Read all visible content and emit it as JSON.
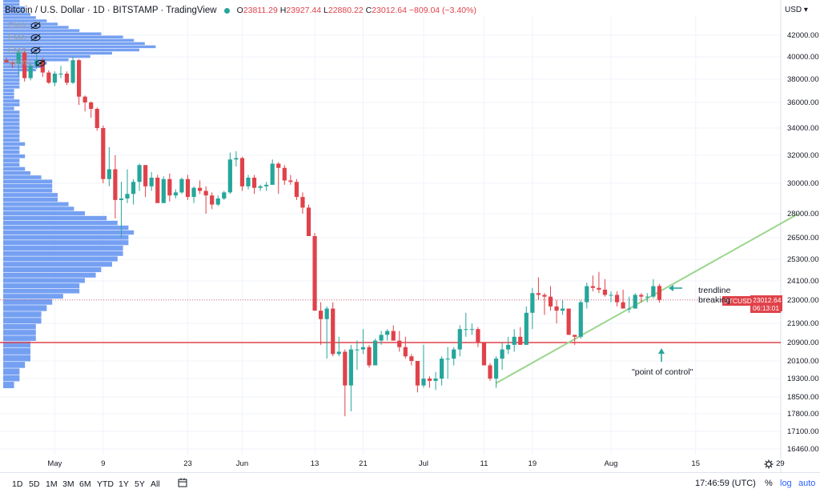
{
  "header": {
    "symbol": "Bitcoin / U.S. Dollar · 1D · BITSTAMP · TradingView",
    "open_label": "O",
    "open": "23811.29",
    "high_label": "H",
    "high": "23927.44",
    "low_label": "L",
    "low": "22880.22",
    "close_label": "C",
    "close": "23012.64",
    "change": "−809.04 (−3.40%)"
  },
  "indicators": [
    {
      "label": "EMA",
      "icon": "eye-slash-icon"
    },
    {
      "label": "EMA",
      "icon": "eye-slash-icon"
    },
    {
      "label": "EMA",
      "icon": "eye-slash-icon"
    },
    {
      "label": "VPVR",
      "icon": "eye-slash-icon"
    }
  ],
  "currency": "USD",
  "price_axis": [
    "42000.00",
    "40000.00",
    "38000.00",
    "36000.00",
    "34000.00",
    "32000.00",
    "30000.00",
    "28000.00",
    "26500.00",
    "25300.00",
    "24100.00",
    "23000.00",
    "21900.00",
    "20900.00",
    "20100.00",
    "19300.00",
    "18500.00",
    "17800.00",
    "17100.00",
    "16460.00"
  ],
  "time_axis": [
    "May",
    "9",
    "23",
    "Jun",
    "13",
    "21",
    "Jul",
    "11",
    "19",
    "Aug",
    "15",
    "29"
  ],
  "last_price": {
    "ticker": "BTCUSD",
    "price": "23012.64",
    "countdown": "06:13:01"
  },
  "annotations": {
    "trendline": [
      "trendline",
      "breaking"
    ],
    "poc": "\"point of control\""
  },
  "timeframes": [
    "1D",
    "5D",
    "1M",
    "3M",
    "6M",
    "YTD",
    "1Y",
    "5Y",
    "All"
  ],
  "footer": {
    "clock": "17:46:59 (UTC)",
    "percent": "%",
    "log": "log",
    "auto": "auto"
  },
  "colors": {
    "up": "#26a69a",
    "down": "#e0424a",
    "trendline": "#9bd68d",
    "poc": "#e0424a",
    "volume": "#5d8ff0",
    "accent": "#2962ff"
  },
  "chart_data": {
    "type": "candlestick",
    "x_range": [
      "2022-04-23",
      "2022-09-01"
    ],
    "ylim": [
      16460,
      42000
    ],
    "candles": [
      {
        "d": "Apr 23",
        "o": 39700,
        "h": 39900,
        "l": 39500,
        "c": 39500
      },
      {
        "d": "Apr 24",
        "o": 39500,
        "h": 39700,
        "l": 39000,
        "c": 39400
      },
      {
        "d": "Apr 25",
        "o": 39400,
        "h": 40600,
        "l": 38300,
        "c": 40400
      },
      {
        "d": "Apr 26",
        "o": 40400,
        "h": 40800,
        "l": 37800,
        "c": 38100
      },
      {
        "d": "Apr 27",
        "o": 38100,
        "h": 39400,
        "l": 37900,
        "c": 39200
      },
      {
        "d": "Apr 28",
        "o": 39200,
        "h": 40300,
        "l": 38900,
        "c": 39700
      },
      {
        "d": "Apr 29",
        "o": 39700,
        "h": 39900,
        "l": 38200,
        "c": 38600
      },
      {
        "d": "Apr 30",
        "o": 38600,
        "h": 38800,
        "l": 37600,
        "c": 37700
      },
      {
        "d": "May 1",
        "o": 37700,
        "h": 38700,
        "l": 37400,
        "c": 38500
      },
      {
        "d": "May 2",
        "o": 38500,
        "h": 39200,
        "l": 38100,
        "c": 38500
      },
      {
        "d": "May 3",
        "o": 38500,
        "h": 38700,
        "l": 37500,
        "c": 37700
      },
      {
        "d": "May 4",
        "o": 37700,
        "h": 40000,
        "l": 37600,
        "c": 39700
      },
      {
        "d": "May 5",
        "o": 39700,
        "h": 39800,
        "l": 35800,
        "c": 36500
      },
      {
        "d": "May 6",
        "o": 36500,
        "h": 36600,
        "l": 35300,
        "c": 36000
      },
      {
        "d": "May 7",
        "o": 36000,
        "h": 36100,
        "l": 34800,
        "c": 35500
      },
      {
        "d": "May 8",
        "o": 35500,
        "h": 35600,
        "l": 33800,
        "c": 34000
      },
      {
        "d": "May 9",
        "o": 34000,
        "h": 34200,
        "l": 30000,
        "c": 30300
      },
      {
        "d": "May 10",
        "o": 30300,
        "h": 32600,
        "l": 29800,
        "c": 31000
      },
      {
        "d": "May 11",
        "o": 31000,
        "h": 32000,
        "l": 27700,
        "c": 28900
      },
      {
        "d": "May 12",
        "o": 28900,
        "h": 30100,
        "l": 26500,
        "c": 29000
      },
      {
        "d": "May 13",
        "o": 29000,
        "h": 31000,
        "l": 28700,
        "c": 29300
      },
      {
        "d": "May 14",
        "o": 29300,
        "h": 30300,
        "l": 28600,
        "c": 30100
      },
      {
        "d": "May 15",
        "o": 30100,
        "h": 31400,
        "l": 29500,
        "c": 31300
      },
      {
        "d": "May 16",
        "o": 31300,
        "h": 31300,
        "l": 29100,
        "c": 29800
      },
      {
        "d": "May 17",
        "o": 29800,
        "h": 30800,
        "l": 29500,
        "c": 30400
      },
      {
        "d": "May 18",
        "o": 30400,
        "h": 30600,
        "l": 28700,
        "c": 28700
      },
      {
        "d": "May 19",
        "o": 28700,
        "h": 30500,
        "l": 28700,
        "c": 30300
      },
      {
        "d": "May 20",
        "o": 30300,
        "h": 30700,
        "l": 28800,
        "c": 29200
      },
      {
        "d": "May 21",
        "o": 29200,
        "h": 29600,
        "l": 29000,
        "c": 29400
      },
      {
        "d": "May 22",
        "o": 29400,
        "h": 30400,
        "l": 29300,
        "c": 30300
      },
      {
        "d": "May 23",
        "o": 30300,
        "h": 30600,
        "l": 28900,
        "c": 29100
      },
      {
        "d": "May 24",
        "o": 29100,
        "h": 29800,
        "l": 28700,
        "c": 29700
      },
      {
        "d": "May 25",
        "o": 29700,
        "h": 30200,
        "l": 29300,
        "c": 29500
      },
      {
        "d": "May 26",
        "o": 29500,
        "h": 29800,
        "l": 28000,
        "c": 29200
      },
      {
        "d": "May 27",
        "o": 29200,
        "h": 29400,
        "l": 28300,
        "c": 28600
      },
      {
        "d": "May 28",
        "o": 28600,
        "h": 29200,
        "l": 28500,
        "c": 29000
      },
      {
        "d": "May 29",
        "o": 29000,
        "h": 29500,
        "l": 28900,
        "c": 29400
      },
      {
        "d": "May 30",
        "o": 29400,
        "h": 32200,
        "l": 29300,
        "c": 31700
      },
      {
        "d": "May 31",
        "o": 31700,
        "h": 32300,
        "l": 31200,
        "c": 31800
      },
      {
        "d": "Jun 1",
        "o": 31800,
        "h": 31900,
        "l": 29500,
        "c": 29800
      },
      {
        "d": "Jun 2",
        "o": 29800,
        "h": 30600,
        "l": 29600,
        "c": 30400
      },
      {
        "d": "Jun 3",
        "o": 30400,
        "h": 30600,
        "l": 29300,
        "c": 29700
      },
      {
        "d": "Jun 4",
        "o": 29700,
        "h": 29900,
        "l": 29500,
        "c": 29800
      },
      {
        "d": "Jun 5",
        "o": 29800,
        "h": 30100,
        "l": 29500,
        "c": 29900
      },
      {
        "d": "Jun 6",
        "o": 29900,
        "h": 31700,
        "l": 29900,
        "c": 31400
      },
      {
        "d": "Jun 7",
        "o": 31400,
        "h": 31500,
        "l": 29300,
        "c": 31100
      },
      {
        "d": "Jun 8",
        "o": 31100,
        "h": 31300,
        "l": 29900,
        "c": 30200
      },
      {
        "d": "Jun 9",
        "o": 30200,
        "h": 30600,
        "l": 29900,
        "c": 30100
      },
      {
        "d": "Jun 10",
        "o": 30100,
        "h": 30300,
        "l": 28900,
        "c": 29100
      },
      {
        "d": "Jun 11",
        "o": 29100,
        "h": 29400,
        "l": 28000,
        "c": 28400
      },
      {
        "d": "Jun 12",
        "o": 28400,
        "h": 28600,
        "l": 26700,
        "c": 26600
      },
      {
        "d": "Jun 13",
        "o": 26600,
        "h": 26800,
        "l": 22700,
        "c": 22500
      },
      {
        "d": "Jun 14",
        "o": 22500,
        "h": 22900,
        "l": 20800,
        "c": 22100
      },
      {
        "d": "Jun 15",
        "o": 22100,
        "h": 22700,
        "l": 20200,
        "c": 22600
      },
      {
        "d": "Jun 16",
        "o": 22600,
        "h": 22900,
        "l": 20300,
        "c": 20400
      },
      {
        "d": "Jun 17",
        "o": 20400,
        "h": 21200,
        "l": 20300,
        "c": 20500
      },
      {
        "d": "Jun 18",
        "o": 20500,
        "h": 20600,
        "l": 17700,
        "c": 19000
      },
      {
        "d": "Jun 19",
        "o": 19000,
        "h": 20800,
        "l": 17900,
        "c": 20600
      },
      {
        "d": "Jun 20",
        "o": 20600,
        "h": 21000,
        "l": 19700,
        "c": 20600
      },
      {
        "d": "Jun 21",
        "o": 20600,
        "h": 21600,
        "l": 20400,
        "c": 20700
      },
      {
        "d": "Jun 22",
        "o": 20700,
        "h": 20800,
        "l": 19800,
        "c": 19900
      },
      {
        "d": "Jun 23",
        "o": 19900,
        "h": 21100,
        "l": 19900,
        "c": 21000
      },
      {
        "d": "Jun 24",
        "o": 21000,
        "h": 21500,
        "l": 20800,
        "c": 21300
      },
      {
        "d": "Jun 25",
        "o": 21300,
        "h": 21600,
        "l": 21000,
        "c": 21500
      },
      {
        "d": "Jun 26",
        "o": 21500,
        "h": 21800,
        "l": 21000,
        "c": 21000
      },
      {
        "d": "Jun 27",
        "o": 21000,
        "h": 21500,
        "l": 20500,
        "c": 20700
      },
      {
        "d": "Jun 28",
        "o": 20700,
        "h": 21200,
        "l": 20200,
        "c": 20300
      },
      {
        "d": "Jun 29",
        "o": 20300,
        "h": 20400,
        "l": 19900,
        "c": 20100
      },
      {
        "d": "Jun 30",
        "o": 20100,
        "h": 20100,
        "l": 18700,
        "c": 19000
      },
      {
        "d": "Jul 1",
        "o": 19000,
        "h": 20800,
        "l": 18900,
        "c": 19300
      },
      {
        "d": "Jul 2",
        "o": 19300,
        "h": 19400,
        "l": 18900,
        "c": 19200
      },
      {
        "d": "Jul 3",
        "o": 19200,
        "h": 19600,
        "l": 18800,
        "c": 19300
      },
      {
        "d": "Jul 4",
        "o": 19300,
        "h": 20300,
        "l": 19000,
        "c": 20200
      },
      {
        "d": "Jul 5",
        "o": 20200,
        "h": 20700,
        "l": 19300,
        "c": 20200
      },
      {
        "d": "Jul 6",
        "o": 20200,
        "h": 20700,
        "l": 19900,
        "c": 20600
      },
      {
        "d": "Jul 7",
        "o": 20600,
        "h": 21800,
        "l": 20300,
        "c": 21600
      },
      {
        "d": "Jul 8",
        "o": 21600,
        "h": 22400,
        "l": 21200,
        "c": 21600
      },
      {
        "d": "Jul 9",
        "o": 21600,
        "h": 21900,
        "l": 21300,
        "c": 21600
      },
      {
        "d": "Jul 10",
        "o": 21600,
        "h": 21700,
        "l": 20700,
        "c": 20900
      },
      {
        "d": "Jul 11",
        "o": 20900,
        "h": 20900,
        "l": 19900,
        "c": 19900
      },
      {
        "d": "Jul 12",
        "o": 19900,
        "h": 20000,
        "l": 19200,
        "c": 19300
      },
      {
        "d": "Jul 13",
        "o": 19300,
        "h": 20300,
        "l": 18900,
        "c": 20200
      },
      {
        "d": "Jul 14",
        "o": 20200,
        "h": 20900,
        "l": 19700,
        "c": 20600
      },
      {
        "d": "Jul 15",
        "o": 20600,
        "h": 21200,
        "l": 20400,
        "c": 20800
      },
      {
        "d": "Jul 16",
        "o": 20800,
        "h": 21600,
        "l": 20500,
        "c": 21200
      },
      {
        "d": "Jul 17",
        "o": 21200,
        "h": 21700,
        "l": 20800,
        "c": 20800
      },
      {
        "d": "Jul 18",
        "o": 20800,
        "h": 22700,
        "l": 20800,
        "c": 22400
      },
      {
        "d": "Jul 19",
        "o": 22400,
        "h": 23700,
        "l": 21600,
        "c": 23400
      },
      {
        "d": "Jul 20",
        "o": 23400,
        "h": 24300,
        "l": 23000,
        "c": 23300
      },
      {
        "d": "Jul 21",
        "o": 23300,
        "h": 23400,
        "l": 22300,
        "c": 23200
      },
      {
        "d": "Jul 22",
        "o": 23200,
        "h": 23800,
        "l": 22500,
        "c": 22700
      },
      {
        "d": "Jul 23",
        "o": 22700,
        "h": 23000,
        "l": 21900,
        "c": 22500
      },
      {
        "d": "Jul 24",
        "o": 22500,
        "h": 23000,
        "l": 22300,
        "c": 22600
      },
      {
        "d": "Jul 25",
        "o": 22600,
        "h": 22600,
        "l": 21300,
        "c": 21300
      },
      {
        "d": "Jul 26",
        "o": 21300,
        "h": 21300,
        "l": 20800,
        "c": 21200
      },
      {
        "d": "Jul 27",
        "o": 21200,
        "h": 23000,
        "l": 21100,
        "c": 22900
      },
      {
        "d": "Jul 28",
        "o": 22900,
        "h": 24000,
        "l": 22600,
        "c": 23800
      },
      {
        "d": "Jul 29",
        "o": 23800,
        "h": 24400,
        "l": 23500,
        "c": 23700
      },
      {
        "d": "Jul 30",
        "o": 23700,
        "h": 24600,
        "l": 23400,
        "c": 23600
      },
      {
        "d": "Jul 31",
        "o": 23600,
        "h": 24200,
        "l": 23200,
        "c": 23300
      },
      {
        "d": "Aug 1",
        "o": 23300,
        "h": 23500,
        "l": 22900,
        "c": 23300
      },
      {
        "d": "Aug 2",
        "o": 23300,
        "h": 23500,
        "l": 22700,
        "c": 22900
      },
      {
        "d": "Aug 3",
        "o": 22900,
        "h": 23600,
        "l": 22700,
        "c": 22600
      },
      {
        "d": "Aug 4",
        "o": 22600,
        "h": 23200,
        "l": 22400,
        "c": 22600
      },
      {
        "d": "Aug 5",
        "o": 22600,
        "h": 23400,
        "l": 22600,
        "c": 23300
      },
      {
        "d": "Aug 6",
        "o": 23300,
        "h": 23400,
        "l": 22900,
        "c": 23200
      },
      {
        "d": "Aug 7",
        "o": 23200,
        "h": 23400,
        "l": 22900,
        "c": 23200
      },
      {
        "d": "Aug 8",
        "o": 23200,
        "h": 24200,
        "l": 23100,
        "c": 23800
      },
      {
        "d": "Aug 9",
        "o": 23811,
        "h": 23927,
        "l": 22880,
        "c": 23013
      }
    ],
    "volume_profile": {
      "price_start": 16460,
      "price_step": 300,
      "volumes": [
        0,
        0,
        0,
        0,
        0,
        0,
        0,
        0,
        2,
        3,
        3,
        4,
        5,
        5,
        5,
        6,
        6,
        6,
        7,
        7,
        8,
        9,
        11,
        14,
        14,
        15,
        17,
        18,
        20,
        21,
        22,
        22,
        23,
        23,
        24,
        23,
        21,
        19,
        15,
        13,
        12,
        10,
        10,
        9,
        9,
        9,
        7,
        5,
        4,
        3,
        3,
        4,
        3,
        3,
        4,
        3,
        3,
        3,
        3,
        3,
        3,
        3,
        3,
        2,
        3,
        3,
        2,
        2,
        2,
        3,
        3,
        3,
        3,
        3,
        6,
        7,
        8,
        12,
        16,
        20,
        25,
        28,
        26,
        24,
        22,
        18,
        14,
        12,
        10,
        8,
        6,
        5,
        4,
        4,
        3,
        3,
        3,
        2,
        2,
        2,
        3,
        3,
        3,
        3,
        4,
        4,
        4,
        4,
        5,
        6,
        6,
        6,
        5,
        4,
        4,
        3,
        3,
        2,
        2,
        2,
        2,
        2,
        2,
        2,
        2,
        2,
        2,
        2,
        2,
        2,
        2,
        2,
        2,
        2,
        2,
        2,
        2,
        2,
        2,
        2,
        2,
        2,
        2,
        2,
        2,
        2,
        2,
        2,
        2,
        2
      ]
    },
    "point_of_control": 20900,
    "last_price": 23012.64,
    "trendline": {
      "from": {
        "d": "Jul 13",
        "price": 19100
      },
      "to": {
        "d": "Sep 1",
        "price": 28000
      }
    },
    "grid": true
  }
}
